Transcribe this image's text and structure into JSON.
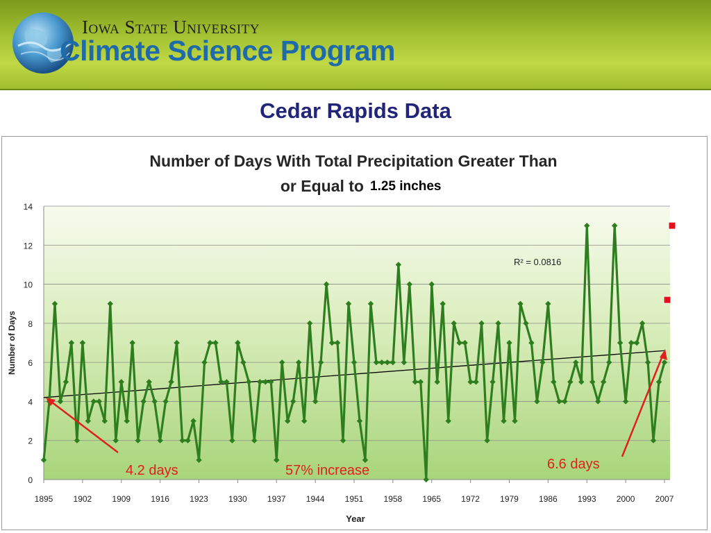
{
  "header": {
    "university": "Iowa State University",
    "program": "Climate Science Program"
  },
  "slide": {
    "title": "Cedar Rapids Data"
  },
  "chart_data": {
    "type": "line",
    "title_line1": "Number of Days With Total Precipitation Greater Than",
    "title_line2": "or Equal to",
    "title_threshold": "1.25 inches",
    "xlabel": "Year",
    "ylabel": "Number of Days",
    "xlim": [
      1895,
      2007
    ],
    "ylim": [
      0,
      14
    ],
    "yticks": [
      0,
      2,
      4,
      6,
      8,
      10,
      12,
      14
    ],
    "xticks": [
      1895,
      1902,
      1909,
      1916,
      1923,
      1930,
      1937,
      1944,
      1951,
      1958,
      1965,
      1972,
      1979,
      1986,
      1993,
      2000,
      2007
    ],
    "grid": true,
    "line_color": "#2e7d1e",
    "trend_color": "#000000",
    "series": [
      {
        "x": [
          1895,
          1896,
          1897,
          1898,
          1899,
          1900,
          1901,
          1902,
          1903,
          1904,
          1905,
          1906,
          1907,
          1908,
          1909,
          1910,
          1911,
          1912,
          1913,
          1914,
          1915,
          1916,
          1917,
          1918,
          1919,
          1920,
          1921,
          1922,
          1923,
          1924,
          1925,
          1926,
          1927,
          1928,
          1929,
          1930,
          1931,
          1932,
          1933,
          1934,
          1935,
          1936,
          1937,
          1938,
          1939,
          1940,
          1941,
          1942,
          1943,
          1944,
          1945,
          1946,
          1947,
          1948,
          1949,
          1950,
          1951,
          1952,
          1953,
          1954,
          1955,
          1956,
          1957,
          1958,
          1959,
          1960,
          1961,
          1962,
          1963,
          1964,
          1965,
          1966,
          1967,
          1968,
          1969,
          1970,
          1971,
          1972,
          1973,
          1974,
          1975,
          1976,
          1977,
          1978,
          1979,
          1980,
          1981,
          1982,
          1983,
          1984,
          1985,
          1986,
          1987,
          1988,
          1989,
          1990,
          1991,
          1992,
          1993,
          1994,
          1995,
          1996,
          1997,
          1998,
          1999,
          2000,
          2001,
          2002,
          2003,
          2004,
          2005,
          2006,
          2007
        ],
        "values": [
          1,
          4,
          9,
          4,
          5,
          7,
          2,
          7,
          3,
          4,
          4,
          3,
          9,
          2,
          5,
          3,
          7,
          2,
          4,
          5,
          4,
          2,
          4,
          5,
          7,
          2,
          2,
          3,
          1,
          6,
          7,
          7,
          5,
          5,
          2,
          7,
          6,
          5,
          2,
          5,
          5,
          5,
          1,
          6,
          3,
          4,
          6,
          3,
          8,
          4,
          6,
          10,
          7,
          7,
          2,
          9,
          6,
          3,
          1,
          9,
          6,
          6,
          6,
          6,
          11,
          6,
          10,
          5,
          5,
          0,
          10,
          5,
          9,
          3,
          8,
          7,
          7,
          5,
          5,
          8,
          2,
          5,
          8,
          3,
          7,
          3,
          9,
          8,
          7,
          4,
          6,
          9,
          5,
          4,
          4,
          5,
          6,
          5,
          13,
          5,
          4,
          5,
          6,
          13,
          7,
          4,
          7,
          7,
          8,
          6,
          2,
          5,
          6
        ]
      }
    ],
    "trendline": {
      "start": [
        1895,
        4.2
      ],
      "end": [
        2007,
        6.6
      ],
      "r2_label": "R² = 0.0816"
    },
    "points_2008_2009": [
      13,
      9.2
    ],
    "annotations": {
      "start_label": "4.2 days",
      "mid_label": "57% increase",
      "end_label": "6.6 days",
      "color": "#e0201c"
    }
  }
}
